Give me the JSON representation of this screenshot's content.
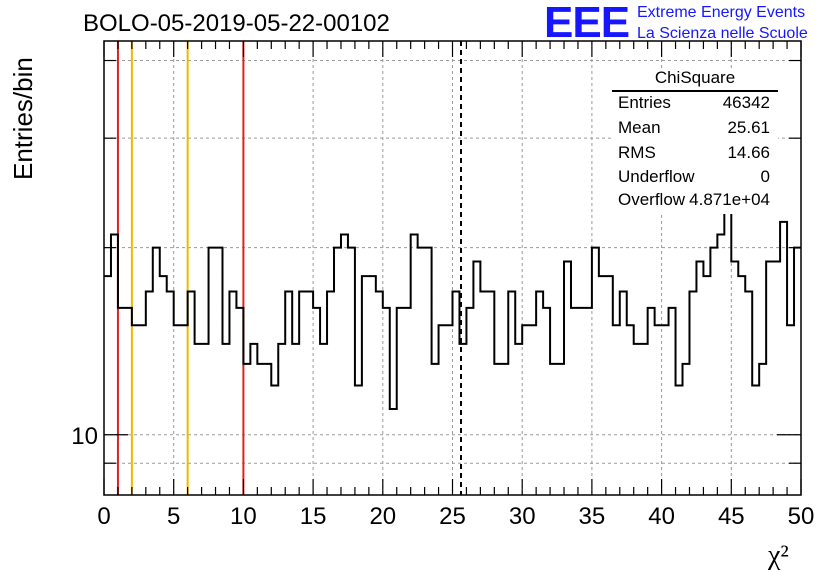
{
  "title": "BOLO-05-2019-05-22-00102",
  "logo": {
    "mark": "EEE",
    "line1": "Extreme Energy Events",
    "line2": "La Scienza nelle Scuole"
  },
  "stats": {
    "header": "ChiSquare",
    "rows": [
      {
        "label": "Entries",
        "value": "46342"
      },
      {
        "label": "Mean",
        "value": "25.61"
      },
      {
        "label": "RMS",
        "value": "14.66"
      },
      {
        "label": "Underflow",
        "value": "0"
      },
      {
        "label": "Overflow",
        "value": "4.871e+04"
      }
    ]
  },
  "chart_data": {
    "type": "histogram",
    "xlabel": "χ²",
    "ylabel": "Entries/bin",
    "x_range": [
      0,
      50
    ],
    "y_scale": "log",
    "y_range": [
      8,
      43
    ],
    "x_ticks": [
      "0",
      "5",
      "10",
      "15",
      "20",
      "25",
      "30",
      "35",
      "40",
      "45",
      "50"
    ],
    "y_tick_labels": [
      {
        "value": 10,
        "label": "10"
      }
    ],
    "grid": true,
    "bin_width": 0.5,
    "values": [
      18,
      21,
      16,
      16,
      15,
      15,
      17,
      20,
      18,
      17,
      15,
      15,
      17,
      14,
      14,
      20,
      20,
      14,
      17,
      16,
      13,
      14,
      13,
      13,
      12,
      14,
      17,
      14,
      17,
      17,
      16,
      14,
      17,
      20,
      21,
      20,
      12,
      18,
      18,
      17,
      16,
      11,
      16,
      16,
      21,
      20,
      20,
      13,
      15,
      15,
      17,
      14,
      16,
      19,
      17,
      17,
      13,
      13,
      17,
      14,
      15,
      15,
      17,
      16,
      13,
      13,
      19,
      16,
      16,
      16,
      20,
      18,
      18,
      15,
      17,
      15,
      14,
      14,
      16,
      15,
      15,
      16,
      12,
      13,
      17,
      19,
      18,
      20,
      21,
      23,
      19,
      18,
      17,
      12,
      13,
      19,
      19,
      22,
      15,
      20
    ],
    "lines": [
      {
        "x": 1,
        "color": "#e02020"
      },
      {
        "x": 2,
        "color": "#f0b800"
      },
      {
        "x": 6,
        "color": "#f0b800"
      },
      {
        "x": 10,
        "color": "#e02020"
      },
      {
        "x": 25.61,
        "color": "#000000",
        "dashed": true
      }
    ]
  }
}
